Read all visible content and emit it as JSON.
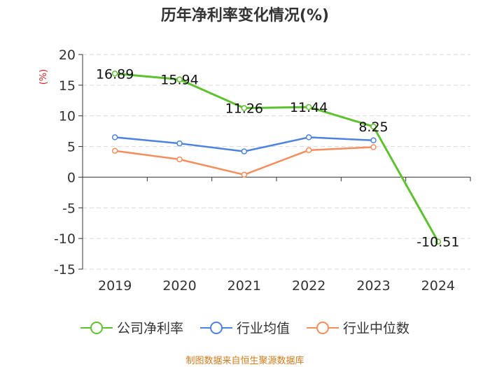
{
  "chart_data": {
    "type": "line",
    "title": "历年净利率变化情况(%)",
    "ylabel": "(%)",
    "xlabel": "",
    "categories": [
      "2019",
      "2020",
      "2021",
      "2022",
      "2023",
      "2024"
    ],
    "ylim": [
      -15,
      20
    ],
    "yticks": [
      20,
      15,
      10,
      5,
      0,
      -5,
      -10,
      -15
    ],
    "grid": true,
    "legend_position": "bottom",
    "series": [
      {
        "name": "公司净利率",
        "values": [
          16.89,
          15.94,
          11.26,
          11.44,
          8.25,
          -10.51
        ],
        "labels": [
          "16.89",
          "15.94",
          "11.26",
          "11.44",
          "8.25",
          "-10.51"
        ],
        "color": "#5ec12f"
      },
      {
        "name": "行业均值",
        "values": [
          6.5,
          5.5,
          4.2,
          6.5,
          6.0,
          null
        ],
        "color": "#4d83e0"
      },
      {
        "name": "行业中位数",
        "values": [
          4.3,
          2.9,
          0.4,
          4.4,
          4.9,
          null
        ],
        "color": "#f58d5c"
      }
    ]
  },
  "source_note": "制图数据来自恒生聚源数据库"
}
